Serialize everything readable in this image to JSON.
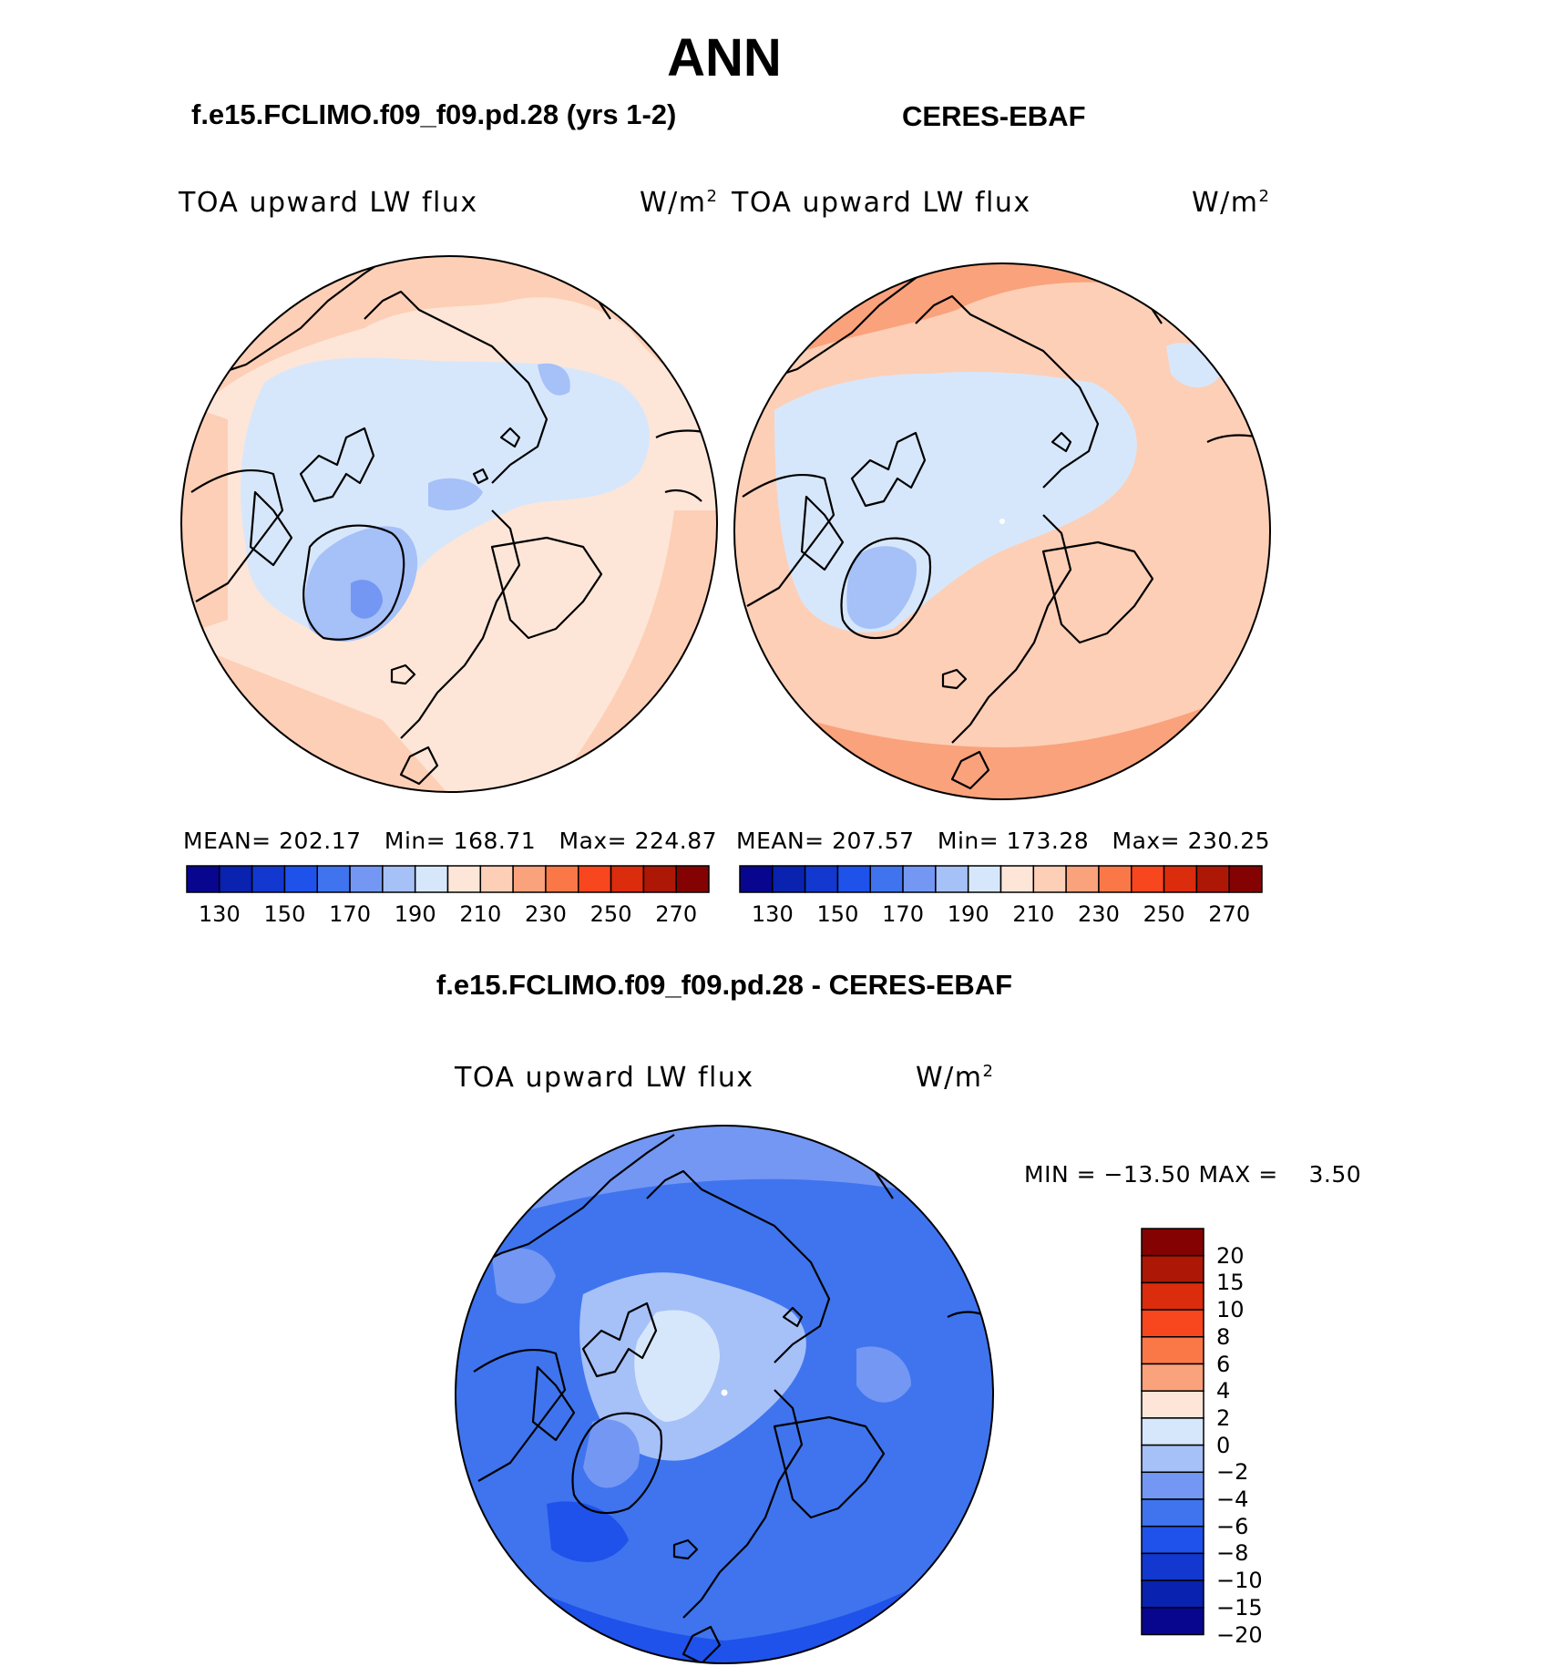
{
  "title": "ANN",
  "panels": [
    {
      "title": "f.e15.FCLIMO.f09_f09.pd.28 (yrs 1-2)",
      "variable": "TOA upward LW flux",
      "units_base": "W/m",
      "units_exp": "2",
      "stats": {
        "mean_label": "MEAN=",
        "mean": "202.17",
        "min_label": "Min=",
        "min": "168.71",
        "max_label": "Max=",
        "max": "224.87"
      }
    },
    {
      "title": "CERES-EBAF",
      "variable": "TOA upward LW flux",
      "units_base": "W/m",
      "units_exp": "2",
      "stats": {
        "mean_label": "MEAN=",
        "mean": "207.57",
        "min_label": "Min=",
        "min": "173.28",
        "max_label": "Max=",
        "max": "230.25"
      }
    }
  ],
  "difference": {
    "title": "f.e15.FCLIMO.f09_f09.pd.28 - CERES-EBAF",
    "variable": "TOA upward LW flux",
    "units_base": "W/m",
    "units_exp": "2",
    "min_label": "MIN =",
    "min": "−13.50",
    "max_label": "MAX =",
    "max": "3.50"
  },
  "colorbar_main": {
    "colors": [
      "#08068f",
      "#0a22b0",
      "#1238cf",
      "#1f52ea",
      "#3f74ee",
      "#7397f3",
      "#a6c0f8",
      "#d7e7fb",
      "#fde6d8",
      "#fdcfb6",
      "#f9a27c",
      "#fa7848",
      "#f8461e",
      "#db2c0d",
      "#ad1706",
      "#850203"
    ],
    "tick_labels": [
      "130",
      "150",
      "170",
      "190",
      "210",
      "230",
      "250",
      "270"
    ]
  },
  "colorbar_diff": {
    "colors": [
      "#850203",
      "#ad1706",
      "#db2c0d",
      "#f8461e",
      "#fa7848",
      "#f9a27c",
      "#fde6d8",
      "#d7e7fb",
      "#a6c0f8",
      "#7397f3",
      "#3f74ee",
      "#1f52ea",
      "#1238cf",
      "#0a22b0",
      "#08068f"
    ],
    "tick_labels": [
      "20",
      "15",
      "10",
      "8",
      "6",
      "4",
      "2",
      "0",
      "−2",
      "−4",
      "−6",
      "−8",
      "−10",
      "−15",
      "−20"
    ]
  }
}
